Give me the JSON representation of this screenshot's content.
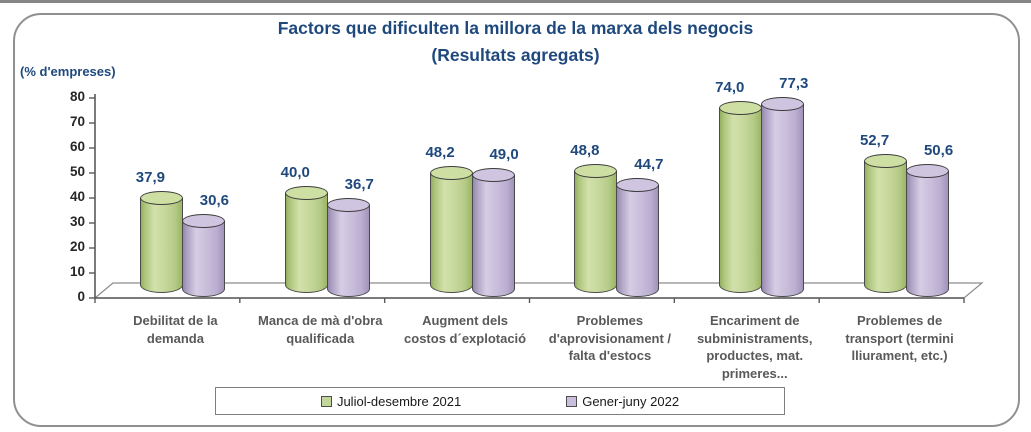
{
  "header": {
    "title": "Factors que dificulten la millora de la marxa dels negocis",
    "subtitle": "(Resultats agregats)"
  },
  "axis": {
    "unit_label": "(% d'empreses)"
  },
  "colors": {
    "accent_blue": "#1F497D",
    "series_green": "#c4d79b",
    "series_purple": "#c9bedb",
    "axis_gray": "#595959",
    "frame_gray": "#909090"
  },
  "chart_data": {
    "type": "bar",
    "style": "3d-cylinder",
    "title": "Factors que dificulten la millora de la marxa dels negocis",
    "subtitle": "(Resultats agregats)",
    "ylabel": "(% d'empreses)",
    "ylim": [
      0,
      80
    ],
    "ytick_step": 10,
    "grid": false,
    "legend_position": "bottom",
    "decimal_separator": ",",
    "categories": [
      [
        "Debilitat de la",
        "demanda"
      ],
      [
        "Manca de mà d'obra",
        "qualificada"
      ],
      [
        "Augment dels",
        "costos d´explotació"
      ],
      [
        "Problemes",
        "d'aprovisionament /",
        "falta d'estocs"
      ],
      [
        "Encariment de",
        "subministraments,",
        "productes, mat.",
        "primeres..."
      ],
      [
        "Problemes de",
        "transport (termini",
        "lliurament, etc.)"
      ]
    ],
    "series": [
      {
        "name": "Juliol-desembre 2021",
        "color": "#c4d79b",
        "values": [
          37.9,
          40.0,
          48.2,
          48.8,
          74.0,
          52.7
        ]
      },
      {
        "name": "Gener-juny 2022",
        "color": "#c9bedb",
        "values": [
          30.6,
          36.7,
          49.0,
          44.7,
          77.3,
          50.6
        ]
      }
    ]
  }
}
